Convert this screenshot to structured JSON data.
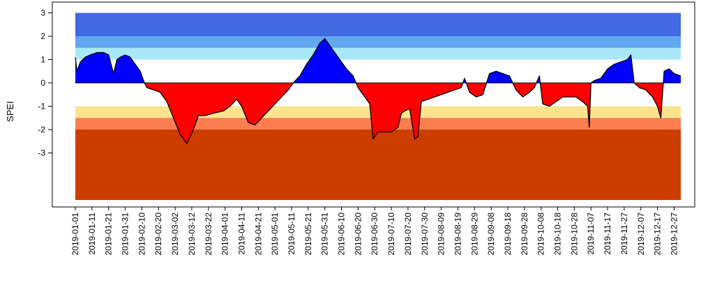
{
  "chart_data": {
    "type": "area",
    "ylabel": "SPEI",
    "y_ticks": [
      3,
      2,
      1,
      0,
      -1,
      -2,
      -3
    ],
    "ylim": [
      -5,
      3
    ],
    "x_range": [
      "2019-01-01",
      "2019-12-31"
    ],
    "x_ticks": [
      "2019-01-01",
      "2019-01-11",
      "2019-01-21",
      "2019-01-31",
      "2019-02-10",
      "2019-02-20",
      "2019-03-02",
      "2019-03-12",
      "2019-03-22",
      "2019-04-01",
      "2019-04-11",
      "2019-04-21",
      "2019-05-01",
      "2019-05-11",
      "2019-05-21",
      "2019-05-31",
      "2019-06-10",
      "2019-06-20",
      "2019-06-30",
      "2019-07-10",
      "2019-07-20",
      "2019-07-30",
      "2019-08-09",
      "2019-08-19",
      "2019-08-29",
      "2019-09-08",
      "2019-09-18",
      "2019-09-28",
      "2019-10-08",
      "2019-10-18",
      "2019-10-28",
      "2019-11-07",
      "2019-11-17",
      "2019-11-27",
      "2019-12-07",
      "2019-12-17",
      "2019-12-27"
    ],
    "bands": [
      {
        "from": 2,
        "to": 3,
        "color": "#4169E1"
      },
      {
        "from": 1.5,
        "to": 2,
        "color": "#62A8F0"
      },
      {
        "from": 1,
        "to": 1.5,
        "color": "#A8E8F8"
      },
      {
        "from": -1.5,
        "to": -1,
        "color": "#FCE38E"
      },
      {
        "from": -2,
        "to": -1.5,
        "color": "#FA7E50"
      },
      {
        "from": -5,
        "to": -2,
        "color": "#CC3D00"
      }
    ],
    "positive_color": "#0000FF",
    "negative_color": "#FF0000",
    "series": [
      {
        "x": [
          "2019-01-01",
          "2019-01-02",
          "2019-01-04",
          "2019-01-07",
          "2019-01-10",
          "2019-01-14",
          "2019-01-18",
          "2019-01-21",
          "2019-01-24",
          "2019-01-26",
          "2019-01-28",
          "2019-01-31",
          "2019-02-03",
          "2019-02-06",
          "2019-02-09",
          "2019-02-11",
          "2019-02-13",
          "2019-02-17",
          "2019-02-21",
          "2019-02-25",
          "2019-03-01",
          "2019-03-05",
          "2019-03-09",
          "2019-03-11",
          "2019-03-13",
          "2019-03-16",
          "2019-03-20",
          "2019-03-25",
          "2019-03-31",
          "2019-04-04",
          "2019-04-08",
          "2019-04-11",
          "2019-04-15",
          "2019-04-19",
          "2019-04-23",
          "2019-04-27",
          "2019-05-01",
          "2019-05-05",
          "2019-05-09",
          "2019-05-12",
          "2019-05-16",
          "2019-05-20",
          "2019-05-24",
          "2019-05-28",
          "2019-05-31",
          "2019-06-02",
          "2019-06-06",
          "2019-06-10",
          "2019-06-13",
          "2019-06-17",
          "2019-06-20",
          "2019-06-23",
          "2019-06-27",
          "2019-06-29",
          "2019-07-02",
          "2019-07-06",
          "2019-07-10",
          "2019-07-14",
          "2019-07-16",
          "2019-07-18",
          "2019-07-21",
          "2019-07-24",
          "2019-07-26",
          "2019-07-28",
          "2019-08-01",
          "2019-08-05",
          "2019-08-09",
          "2019-08-13",
          "2019-08-17",
          "2019-08-21",
          "2019-08-23",
          "2019-08-26",
          "2019-08-30",
          "2019-09-03",
          "2019-09-07",
          "2019-09-11",
          "2019-09-15",
          "2019-09-19",
          "2019-09-23",
          "2019-09-27",
          "2019-10-01",
          "2019-10-04",
          "2019-10-07",
          "2019-10-09",
          "2019-10-13",
          "2019-10-17",
          "2019-10-21",
          "2019-10-25",
          "2019-10-29",
          "2019-11-02",
          "2019-11-05",
          "2019-11-06",
          "2019-11-07",
          "2019-11-09",
          "2019-11-13",
          "2019-11-17",
          "2019-11-21",
          "2019-11-25",
          "2019-11-29",
          "2019-12-01",
          "2019-12-03",
          "2019-12-06",
          "2019-12-10",
          "2019-12-14",
          "2019-12-17",
          "2019-12-19",
          "2019-12-21",
          "2019-12-24",
          "2019-12-27",
          "2019-12-31"
        ],
        "values": [
          1.1,
          0.5,
          0.9,
          1.1,
          1.2,
          1.3,
          1.3,
          1.2,
          0.4,
          1.0,
          1.1,
          1.2,
          1.1,
          0.8,
          0.5,
          0.1,
          -0.2,
          -0.3,
          -0.4,
          -0.8,
          -1.5,
          -2.2,
          -2.6,
          -2.3,
          -2.0,
          -1.4,
          -1.4,
          -1.3,
          -1.2,
          -1.0,
          -0.7,
          -1.0,
          -1.7,
          -1.8,
          -1.5,
          -1.2,
          -0.9,
          -0.6,
          -0.3,
          0.0,
          0.3,
          0.8,
          1.2,
          1.7,
          1.9,
          1.7,
          1.3,
          0.9,
          0.6,
          0.3,
          -0.2,
          -0.5,
          -0.9,
          -2.4,
          -2.1,
          -2.1,
          -2.1,
          -1.9,
          -1.3,
          -1.2,
          -1.1,
          -2.4,
          -2.3,
          -0.8,
          -0.7,
          -0.6,
          -0.5,
          -0.4,
          -0.3,
          -0.2,
          0.2,
          -0.4,
          -0.6,
          -0.5,
          0.4,
          0.5,
          0.4,
          0.3,
          -0.3,
          -0.6,
          -0.4,
          -0.2,
          0.3,
          -0.9,
          -1.0,
          -0.8,
          -0.6,
          -0.6,
          -0.6,
          -0.8,
          -1.0,
          -1.9,
          0.0,
          0.1,
          0.2,
          0.6,
          0.8,
          0.9,
          1.0,
          1.2,
          0.0,
          -0.2,
          -0.3,
          -0.6,
          -1.0,
          -1.5,
          0.5,
          0.6,
          0.4,
          0.3
        ]
      }
    ]
  }
}
